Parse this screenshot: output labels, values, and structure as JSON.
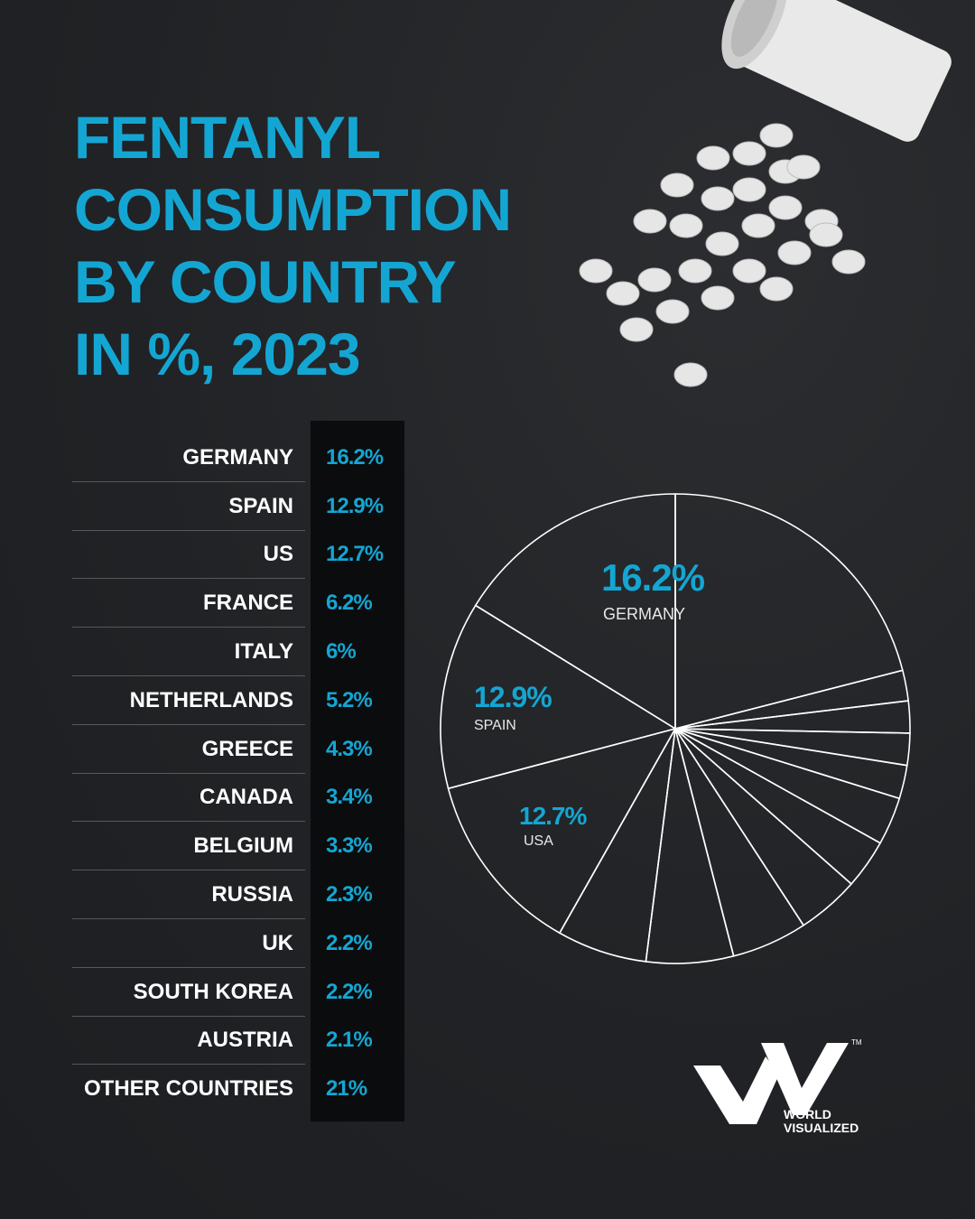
{
  "title_lines": [
    "FENTANYL",
    "CONSUMPTION",
    "BY COUNTRY",
    "IN %, 2023"
  ],
  "colors": {
    "accent": "#14a6d3",
    "background": "#222427",
    "text": "#ffffff"
  },
  "chart_data": {
    "type": "pie",
    "title": "FENTANYL CONSUMPTION BY COUNTRY IN %, 2023",
    "categories": [
      "GERMANY",
      "SPAIN",
      "US",
      "FRANCE",
      "ITALY",
      "NETHERLANDS",
      "GREECE",
      "CANADA",
      "BELGIUM",
      "RUSSIA",
      "UK",
      "SOUTH KOREA",
      "AUSTRIA",
      "OTHER COUNTRIES"
    ],
    "value_labels": [
      "16.2%",
      "12.9%",
      "12.7%",
      "6.2%",
      "6%",
      "5.2%",
      "4.3%",
      "3.4%",
      "3.3%",
      "2.3%",
      "2.2%",
      "2.2%",
      "2.1%",
      "21%"
    ],
    "values": [
      16.2,
      12.9,
      12.7,
      6.2,
      6,
      5.2,
      4.3,
      3.4,
      3.3,
      2.3,
      2.2,
      2.2,
      2.1,
      21
    ],
    "pie_labels": [
      {
        "value": "16.2%",
        "name": "GERMANY"
      },
      {
        "value": "12.9%",
        "name": "SPAIN"
      },
      {
        "value": "12.7%",
        "name": "USA"
      }
    ],
    "start": "top",
    "direction": "counterclockwise"
  },
  "logo": {
    "brand": "WORLD VISUALIZED",
    "line1": "WORLD",
    "line2": "VISUALIZED",
    "tm": "TM"
  }
}
